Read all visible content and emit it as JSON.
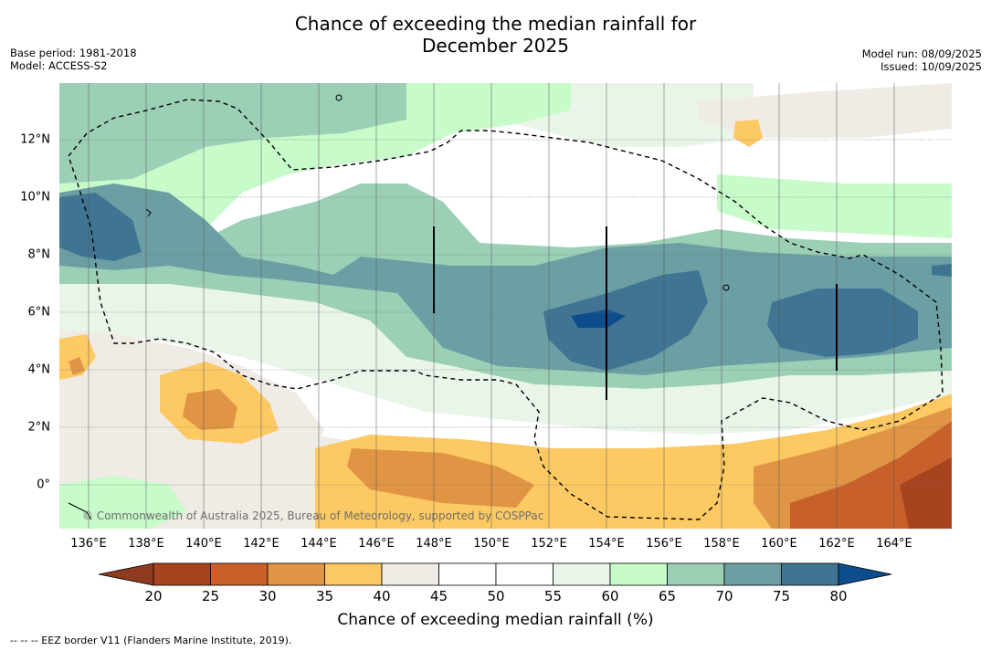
{
  "title": {
    "line1": "Chance of exceeding the median rainfall for",
    "line2": "December 2025"
  },
  "meta_left": {
    "base_period": "Base period: 1981-2018",
    "model": "Model: ACCESS-S2"
  },
  "meta_right": {
    "model_run": "Model run: 08/09/2025",
    "issued": "Issued: 10/09/2025"
  },
  "map": {
    "lon_labels": [
      "136°E",
      "138°E",
      "140°E",
      "142°E",
      "144°E",
      "146°E",
      "148°E",
      "150°E",
      "152°E",
      "154°E",
      "156°E",
      "158°E",
      "160°E",
      "162°E",
      "164°E"
    ],
    "lat_labels": [
      "12°N",
      "10°N",
      "8°N",
      "6°N",
      "4°N",
      "2°N",
      "0°"
    ],
    "copyright": "© Commonwealth of Australia 2025, Bureau of Meteorology, supported by COSPPac"
  },
  "colorbar": {
    "title": "Chance of exceeding median rainfall (%)",
    "ticks": [
      "20",
      "25",
      "30",
      "35",
      "40",
      "45",
      "50",
      "55",
      "60",
      "65",
      "70",
      "75",
      "80"
    ],
    "colors": [
      "#a8431f",
      "#c8602b",
      "#e09544",
      "#fdc963",
      "#f0ebe5",
      "#ffffff",
      "#ffffff",
      "#eaf5ea",
      "#c7fbc9",
      "#9bcfb6",
      "#6b9fa3",
      "#3f7593"
    ],
    "under_color": "#8e3a1e",
    "over_color": "#0e4d8c"
  },
  "legend_note": "-- -- -- EEZ border V11 (Flanders Marine Institute, 2019)."
}
